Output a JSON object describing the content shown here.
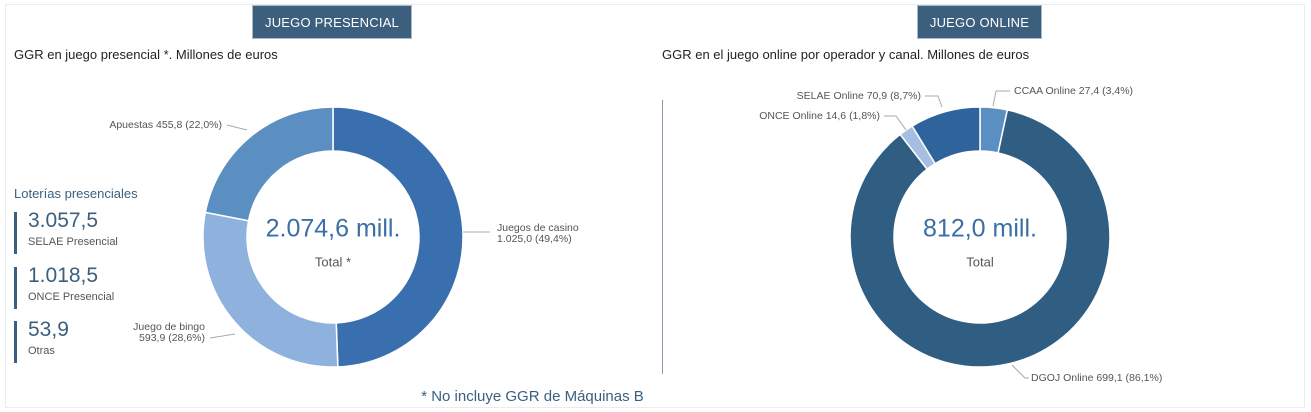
{
  "header": {
    "presencial_tab": "JUEGO PRESENCIAL",
    "online_tab": "JUEGO ONLINE"
  },
  "colors": {
    "tab_bg": "#3b5f7d",
    "accent": "#3b5f7d",
    "center_value": "#3b6ea6"
  },
  "loterias": {
    "title": "Loterías presenciales",
    "items": [
      {
        "value": "3.057,5",
        "label": "SELAE Presencial"
      },
      {
        "value": "1.018,5",
        "label": "ONCE Presencial"
      },
      {
        "value": "53,9",
        "label": "Otras"
      }
    ]
  },
  "footnote": "* No incluye GGR de Máquinas B",
  "chart_data": [
    {
      "type": "pie",
      "variant": "donut",
      "title": "GGR en juego presencial *. Millones de euros",
      "center_value": "2.074,6 mill.",
      "center_label": "Total *",
      "slices": [
        {
          "name": "Juegos de casino",
          "value": 1025.0,
          "label_line1": "Juegos de casino",
          "label_line2": "1.025,0 (49,4%)",
          "color": "#3a6faf"
        },
        {
          "name": "Juego de bingo",
          "value": 593.9,
          "label_line1": "Juego de bingo",
          "label_line2": "593,9 (28,6%)",
          "color": "#8fb1dd"
        },
        {
          "name": "Apuestas",
          "value": 455.8,
          "label_line1": "Apuestas 455,8 (22,0%)",
          "label_line2": "",
          "color": "#5b8fc2"
        }
      ]
    },
    {
      "type": "pie",
      "variant": "donut",
      "title": "GGR en el juego online por operador y canal. Millones de euros",
      "center_value": "812,0 mill.",
      "center_label": "Total",
      "slices": [
        {
          "name": "CCAA Online",
          "value": 27.4,
          "label_line1": "CCAA Online 27,4 (3,4%)",
          "label_line2": "",
          "color": "#5b8fc2"
        },
        {
          "name": "DGOJ Online",
          "value": 699.1,
          "label_line1": "DGOJ Online 699,1 (86,1%)",
          "label_line2": "",
          "color": "#305d82"
        },
        {
          "name": "ONCE Online",
          "value": 14.6,
          "label_line1": "ONCE Online 14,6 (1,8%)",
          "label_line2": "",
          "color": "#a4bfe1"
        },
        {
          "name": "SELAE Online",
          "value": 70.9,
          "label_line1": "SELAE Online 70,9 (8,7%)",
          "label_line2": "",
          "color": "#2f639c"
        }
      ]
    }
  ]
}
